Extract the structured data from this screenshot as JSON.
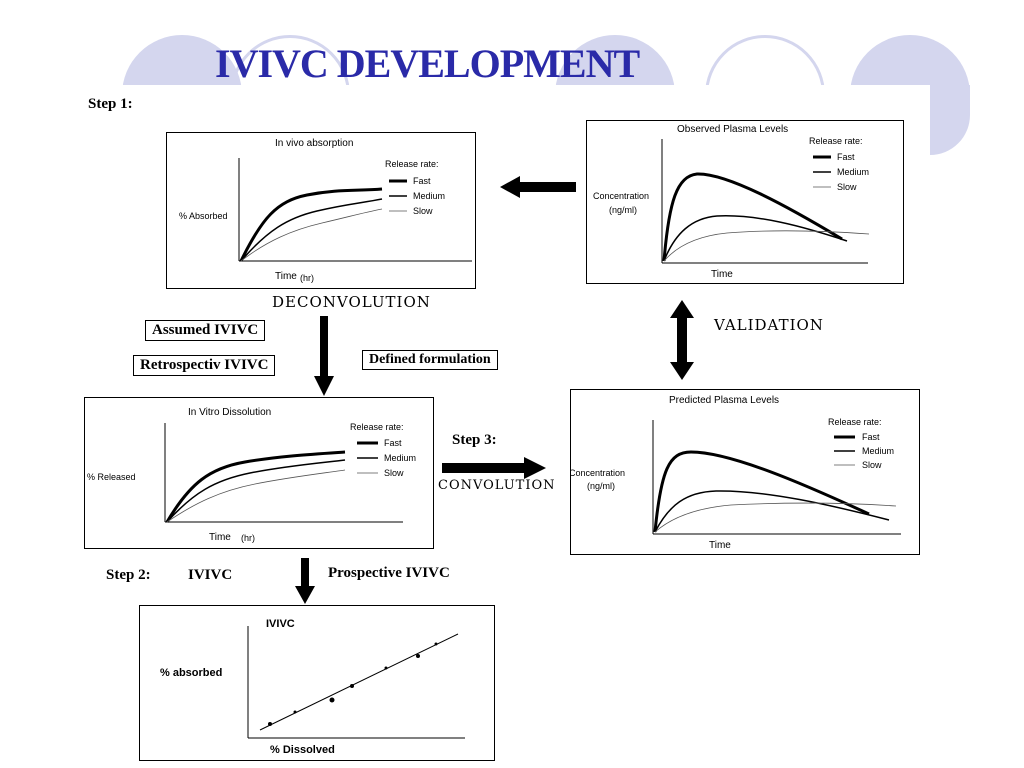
{
  "colors": {
    "title": "#2a2aa8",
    "decoration": "#d4d6ee"
  },
  "slide": {
    "title": "IVIVC DEVELOPMENT",
    "step1": "Step 1:",
    "step2": "Step 2:",
    "step2_ivivc": "IVIVC",
    "step3": "Step 3:",
    "deconvolution": "DECONVOLUTION",
    "validation": "VALIDATION",
    "convolution": "CONVOLUTION",
    "assumed_ivivc": "Assumed IVIVC",
    "retrospective_ivivc": "Retrospectiv IVIVC",
    "defined_formulation": "Defined formulation",
    "prospective_ivivc": "Prospective IVIVC"
  },
  "charts": {
    "invivo": {
      "title": "In vivo absorption",
      "ylabel": "% Absorbed",
      "xlabel": "Time",
      "xunit": "(hr)",
      "legend_title": "Release rate:",
      "legend": [
        "Fast",
        "Medium",
        "Slow"
      ]
    },
    "observed": {
      "title": "Observed Plasma Levels",
      "ylabel_line1": "Concentration",
      "ylabel_line2": "(ng/ml)",
      "xlabel": "Time",
      "legend_title": "Release rate:",
      "legend": [
        "Fast",
        "Medium",
        "Slow"
      ]
    },
    "invitro": {
      "title": "In Vitro   Dissolution",
      "ylabel": "% Released",
      "xlabel": "Time",
      "xunit": "(hr)",
      "legend_title": "Release rate:",
      "legend": [
        "Fast",
        "Medium",
        "Slow"
      ]
    },
    "predicted": {
      "title": "Predicted Plasma Levels",
      "ylabel_line1": "Concentration",
      "ylabel_line2": "(ng/ml)",
      "xlabel": "Time",
      "legend_title": "Release rate:",
      "legend": [
        "Fast",
        "Medium",
        "Slow"
      ]
    },
    "ivivc": {
      "title": "IVIVC",
      "ylabel": "% absorbed",
      "xlabel": "% Dissolved"
    }
  }
}
